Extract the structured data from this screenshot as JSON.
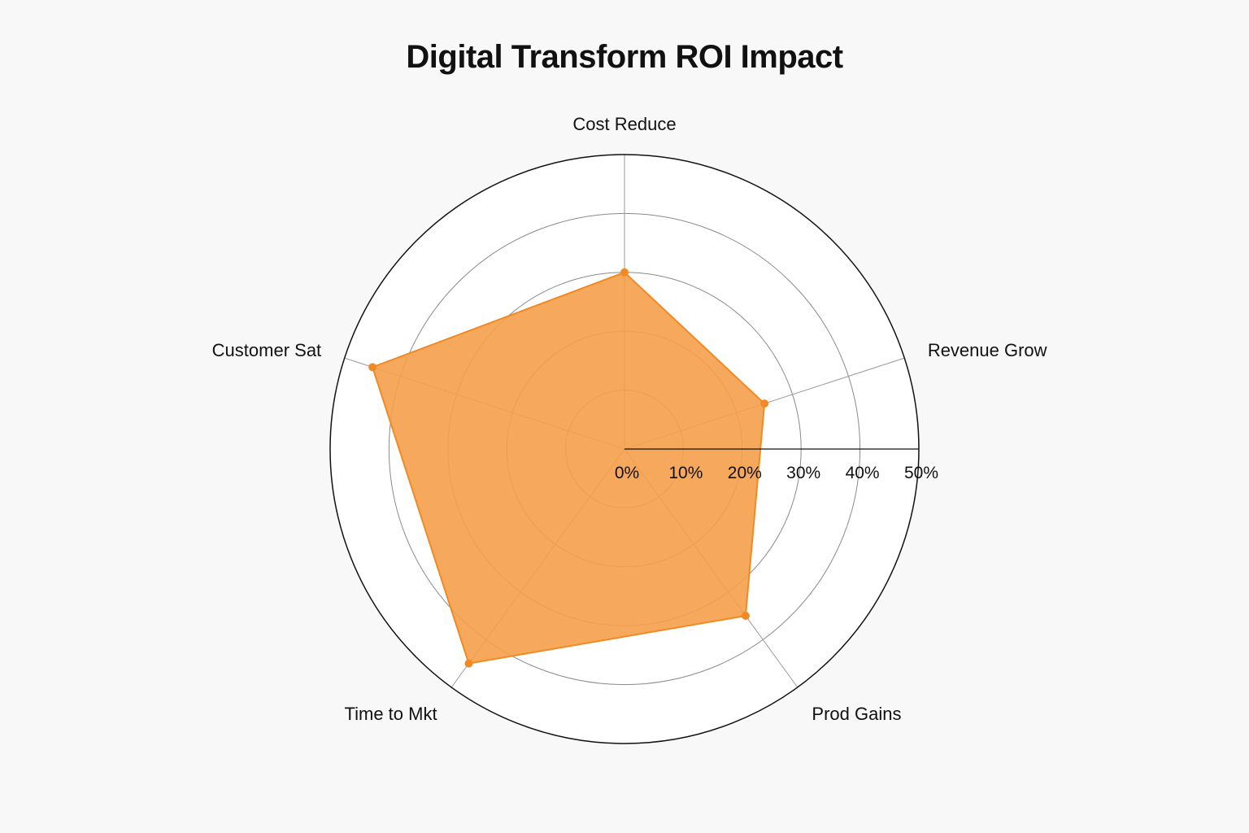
{
  "chart_data": {
    "type": "radar",
    "title": "Digital Transform ROI Impact",
    "categories": [
      "Cost Reduce",
      "Revenue Grow",
      "Prod Gains",
      "Time to Mkt",
      "Customer Sat"
    ],
    "series": [
      {
        "values": [
          30,
          25,
          35,
          45,
          45
        ]
      }
    ],
    "rlim": [
      0,
      50
    ],
    "r_ticks": [
      0,
      10,
      20,
      30,
      40,
      50
    ],
    "r_tick_labels": [
      "0%",
      "10%",
      "20%",
      "30%",
      "40%",
      "50%"
    ],
    "grid": true,
    "legend": "none",
    "colors": {
      "fill": "#f5a04a",
      "marker": "#f08a24",
      "background": "#f8f8f8",
      "plot_area": "#ffffff"
    }
  }
}
